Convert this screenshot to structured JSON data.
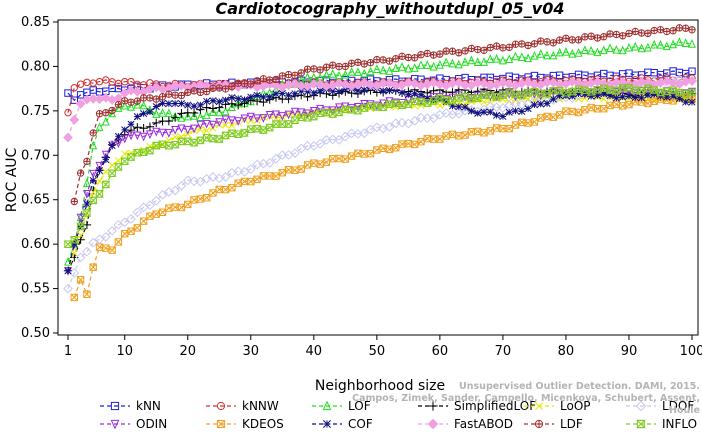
{
  "chart_data": {
    "type": "line",
    "title": "Cardiotocography_withoutdupl_05_v04",
    "xlabel": "Neighborhood size",
    "ylabel": "ROC AUC",
    "xlim": [
      1,
      100
    ],
    "ylim": [
      0.5,
      0.85
    ],
    "xticks": [
      1,
      10,
      20,
      30,
      40,
      50,
      60,
      70,
      80,
      90,
      100
    ],
    "yticks": [
      "0.50",
      "0.55",
      "0.60",
      "0.65",
      "0.70",
      "0.75",
      "0.80",
      "0.85"
    ],
    "grid": false,
    "legend_position": "bottom",
    "series": [
      {
        "name": "kNN",
        "color": "#1f1fd6",
        "marker": "square",
        "points": [
          [
            1,
            0.77
          ],
          [
            2,
            0.762
          ],
          [
            3,
            0.768
          ],
          [
            5,
            0.772
          ],
          [
            10,
            0.775
          ],
          [
            20,
            0.779
          ],
          [
            30,
            0.781
          ],
          [
            40,
            0.783
          ],
          [
            50,
            0.784
          ],
          [
            60,
            0.785
          ],
          [
            70,
            0.787
          ],
          [
            80,
            0.789
          ],
          [
            90,
            0.791
          ],
          [
            100,
            0.794
          ]
        ]
      },
      {
        "name": "kNNW",
        "color": "#d03030",
        "marker": "circle",
        "points": [
          [
            1,
            0.748
          ],
          [
            2,
            0.776
          ],
          [
            3,
            0.78
          ],
          [
            5,
            0.783
          ],
          [
            8,
            0.783
          ],
          [
            12,
            0.781
          ],
          [
            16,
            0.779
          ],
          [
            20,
            0.779
          ],
          [
            30,
            0.78
          ],
          [
            40,
            0.781
          ],
          [
            50,
            0.781
          ],
          [
            60,
            0.782
          ],
          [
            70,
            0.783
          ],
          [
            80,
            0.784
          ],
          [
            90,
            0.785
          ],
          [
            100,
            0.786
          ]
        ]
      },
      {
        "name": "LOF",
        "color": "#22dd22",
        "marker": "triangle-up",
        "points": [
          [
            1,
            0.58
          ],
          [
            2,
            0.6
          ],
          [
            3,
            0.63
          ],
          [
            4,
            0.67
          ],
          [
            5,
            0.71
          ],
          [
            6,
            0.73
          ],
          [
            8,
            0.748
          ],
          [
            10,
            0.755
          ],
          [
            12,
            0.757
          ],
          [
            15,
            0.748
          ],
          [
            20,
            0.742
          ],
          [
            25,
            0.748
          ],
          [
            30,
            0.762
          ],
          [
            35,
            0.778
          ],
          [
            40,
            0.788
          ],
          [
            50,
            0.795
          ],
          [
            60,
            0.802
          ],
          [
            70,
            0.808
          ],
          [
            80,
            0.815
          ],
          [
            90,
            0.82
          ],
          [
            100,
            0.827
          ]
        ]
      },
      {
        "name": "SimplifiedLOF",
        "color": "#000000",
        "marker": "plus",
        "points": [
          [
            1,
            0.57
          ],
          [
            2,
            0.585
          ],
          [
            3,
            0.605
          ],
          [
            4,
            0.62
          ],
          [
            5,
            0.66
          ],
          [
            6,
            0.685
          ],
          [
            8,
            0.71
          ],
          [
            10,
            0.725
          ],
          [
            12,
            0.73
          ],
          [
            15,
            0.735
          ],
          [
            20,
            0.748
          ],
          [
            25,
            0.755
          ],
          [
            30,
            0.76
          ],
          [
            40,
            0.768
          ],
          [
            50,
            0.772
          ],
          [
            60,
            0.772
          ],
          [
            70,
            0.773
          ],
          [
            80,
            0.772
          ],
          [
            90,
            0.768
          ],
          [
            100,
            0.768
          ]
        ]
      },
      {
        "name": "LoOP",
        "color": "#e8e800",
        "marker": "x",
        "points": [
          [
            1,
            0.57
          ],
          [
            2,
            0.59
          ],
          [
            3,
            0.61
          ],
          [
            5,
            0.66
          ],
          [
            8,
            0.69
          ],
          [
            10,
            0.7
          ],
          [
            15,
            0.71
          ],
          [
            20,
            0.725
          ],
          [
            30,
            0.74
          ],
          [
            40,
            0.748
          ],
          [
            50,
            0.755
          ],
          [
            60,
            0.758
          ],
          [
            70,
            0.762
          ],
          [
            80,
            0.765
          ],
          [
            90,
            0.765
          ],
          [
            100,
            0.762
          ]
        ]
      },
      {
        "name": "LDOF",
        "color": "#c8c8f0",
        "marker": "diamond",
        "points": [
          [
            1,
            0.55
          ],
          [
            3,
            0.585
          ],
          [
            5,
            0.6
          ],
          [
            8,
            0.615
          ],
          [
            10,
            0.625
          ],
          [
            15,
            0.65
          ],
          [
            20,
            0.67
          ],
          [
            25,
            0.675
          ],
          [
            30,
            0.685
          ],
          [
            40,
            0.712
          ],
          [
            50,
            0.73
          ],
          [
            60,
            0.745
          ],
          [
            70,
            0.755
          ],
          [
            80,
            0.765
          ],
          [
            90,
            0.778
          ],
          [
            100,
            0.785
          ]
        ]
      },
      {
        "name": "ODIN",
        "color": "#9a2be0",
        "marker": "triangle-down",
        "points": [
          [
            1,
            0.57
          ],
          [
            2,
            0.6
          ],
          [
            3,
            0.63
          ],
          [
            5,
            0.68
          ],
          [
            8,
            0.71
          ],
          [
            10,
            0.72
          ],
          [
            15,
            0.725
          ],
          [
            20,
            0.73
          ],
          [
            25,
            0.738
          ],
          [
            30,
            0.742
          ],
          [
            40,
            0.75
          ],
          [
            50,
            0.758
          ],
          [
            60,
            0.765
          ],
          [
            70,
            0.768
          ],
          [
            80,
            0.77
          ],
          [
            90,
            0.772
          ],
          [
            100,
            0.77
          ]
        ]
      },
      {
        "name": "KDEOS",
        "color": "#f0a020",
        "marker": "square-x",
        "points": [
          [
            2,
            0.54
          ],
          [
            3,
            0.56
          ],
          [
            4,
            0.545
          ],
          [
            5,
            0.575
          ],
          [
            6,
            0.595
          ],
          [
            8,
            0.595
          ],
          [
            10,
            0.61
          ],
          [
            15,
            0.635
          ],
          [
            20,
            0.645
          ],
          [
            25,
            0.66
          ],
          [
            30,
            0.672
          ],
          [
            32,
            0.675
          ],
          [
            35,
            0.68
          ],
          [
            40,
            0.69
          ],
          [
            50,
            0.705
          ],
          [
            60,
            0.72
          ],
          [
            70,
            0.73
          ],
          [
            80,
            0.748
          ],
          [
            90,
            0.758
          ],
          [
            100,
            0.765
          ]
        ]
      },
      {
        "name": "COF",
        "color": "#101080",
        "marker": "asterisk",
        "points": [
          [
            1,
            0.57
          ],
          [
            2,
            0.6
          ],
          [
            3,
            0.62
          ],
          [
            5,
            0.67
          ],
          [
            8,
            0.71
          ],
          [
            10,
            0.73
          ],
          [
            12,
            0.742
          ],
          [
            15,
            0.755
          ],
          [
            18,
            0.76
          ],
          [
            20,
            0.755
          ],
          [
            25,
            0.762
          ],
          [
            30,
            0.765
          ],
          [
            40,
            0.772
          ],
          [
            50,
            0.775
          ],
          [
            55,
            0.77
          ],
          [
            60,
            0.762
          ],
          [
            65,
            0.75
          ],
          [
            70,
            0.745
          ],
          [
            75,
            0.755
          ],
          [
            80,
            0.768
          ],
          [
            85,
            0.768
          ],
          [
            90,
            0.765
          ],
          [
            95,
            0.768
          ],
          [
            100,
            0.76
          ]
        ]
      },
      {
        "name": "FastABOD",
        "color": "#f0a0e0",
        "marker": "diamond-filled",
        "points": [
          [
            1,
            0.72
          ],
          [
            2,
            0.74
          ],
          [
            3,
            0.758
          ],
          [
            5,
            0.765
          ],
          [
            8,
            0.762
          ],
          [
            10,
            0.77
          ],
          [
            15,
            0.775
          ],
          [
            20,
            0.778
          ],
          [
            30,
            0.778
          ],
          [
            40,
            0.779
          ],
          [
            50,
            0.78
          ],
          [
            60,
            0.78
          ],
          [
            70,
            0.78
          ],
          [
            80,
            0.781
          ],
          [
            90,
            0.781
          ],
          [
            100,
            0.782
          ]
        ]
      },
      {
        "name": "LDF",
        "color": "#a03030",
        "marker": "circle-plus",
        "points": [
          [
            2,
            0.648
          ],
          [
            3,
            0.68
          ],
          [
            4,
            0.695
          ],
          [
            5,
            0.725
          ],
          [
            6,
            0.745
          ],
          [
            8,
            0.752
          ],
          [
            10,
            0.76
          ],
          [
            15,
            0.765
          ],
          [
            20,
            0.77
          ],
          [
            25,
            0.775
          ],
          [
            30,
            0.782
          ],
          [
            35,
            0.788
          ],
          [
            40,
            0.797
          ],
          [
            50,
            0.806
          ],
          [
            60,
            0.815
          ],
          [
            70,
            0.822
          ],
          [
            80,
            0.83
          ],
          [
            90,
            0.837
          ],
          [
            100,
            0.843
          ]
        ]
      },
      {
        "name": "INFLO",
        "color": "#80cc20",
        "marker": "hourglass",
        "points": [
          [
            1,
            0.6
          ],
          [
            2,
            0.605
          ],
          [
            3,
            0.62
          ],
          [
            5,
            0.648
          ],
          [
            8,
            0.678
          ],
          [
            10,
            0.695
          ],
          [
            15,
            0.71
          ],
          [
            20,
            0.715
          ],
          [
            25,
            0.72
          ],
          [
            30,
            0.728
          ],
          [
            32,
            0.73
          ],
          [
            35,
            0.735
          ],
          [
            40,
            0.745
          ],
          [
            50,
            0.755
          ],
          [
            60,
            0.762
          ],
          [
            70,
            0.768
          ],
          [
            80,
            0.772
          ],
          [
            90,
            0.775
          ],
          [
            100,
            0.77
          ]
        ]
      }
    ]
  },
  "watermark": {
    "line1": "Unsupervised Outlier Detection. DAMI, 2015.",
    "line2": "Campos, Zimek, Sander, Campello, Micenkova, Schubert, Assent, Houle"
  }
}
